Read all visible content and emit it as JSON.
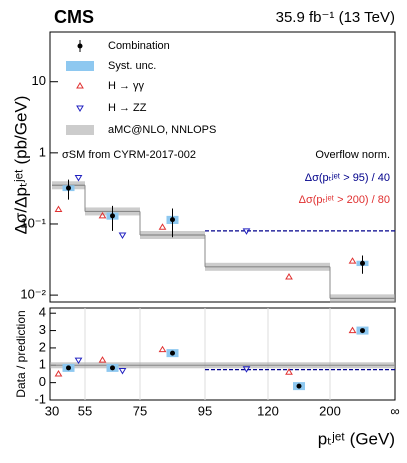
{
  "chart_data": {
    "type": "step-ratio",
    "experiment": "CMS",
    "lumi": "35.9 fb⁻¹ (13 TeV)",
    "ylabel": "Δσ/Δpₜʲᵉᵗ (pb/GeV)",
    "ratio_ylabel": "Data / prediction",
    "xlabel": "pₜʲᵉᵗ (GeV)",
    "x_edges": [
      "30",
      "55",
      "75",
      "95",
      "120",
      "200",
      "∞"
    ],
    "annotations": [
      "σSM from CYRM-2017-002",
      "Overflow norm.",
      "Δσ(pₜʲᵉᵗ > 95) / 40",
      "Δσ(pₜʲᵉᵗ > 200) / 80"
    ],
    "log_y": true,
    "ylim": [
      0.008,
      50
    ],
    "yticks": [
      {
        "value": 0.01,
        "label": "10⁻²"
      },
      {
        "value": 0.1,
        "label": "10⁻¹"
      },
      1,
      10
    ],
    "ratio_ylim": [
      -1,
      4.3
    ],
    "ratio_yticks": [
      -1,
      0,
      1,
      2,
      3,
      4
    ],
    "prediction": {
      "name": "aMC@NLO, NNLOPS",
      "color": "#aaaaaa",
      "values": [
        0.35,
        0.15,
        0.07,
        0.025,
        0.025,
        0.009
      ]
    },
    "syst_name": "Syst. unc.",
    "syst_color": "#8ec8f0",
    "overflow_line": {
      "color": "#00008b",
      "value": 0.08,
      "ratio": 0.75
    },
    "series": [
      {
        "name": "Combination",
        "color": "#000000",
        "values": [
          0.32,
          0.13,
          0.115,
          null,
          null,
          0.028
        ],
        "errors": [
          0.1,
          0.05,
          0.05,
          null,
          null,
          0.008
        ],
        "ratio": [
          0.85,
          0.85,
          1.7,
          null,
          -0.2,
          3.0
        ]
      },
      {
        "name": "H → γγ",
        "color": "#e03030",
        "values": [
          0.16,
          0.13,
          0.09,
          null,
          0.018,
          0.03
        ],
        "ratio": [
          0.5,
          1.3,
          1.9,
          null,
          0.6,
          3.0
        ]
      },
      {
        "name": "H → ZZ",
        "color": "#2020c0",
        "values": [
          0.45,
          0.07,
          null,
          0.08,
          null,
          null
        ],
        "ratio": [
          1.3,
          0.7,
          null,
          0.8,
          null,
          null
        ]
      }
    ]
  }
}
